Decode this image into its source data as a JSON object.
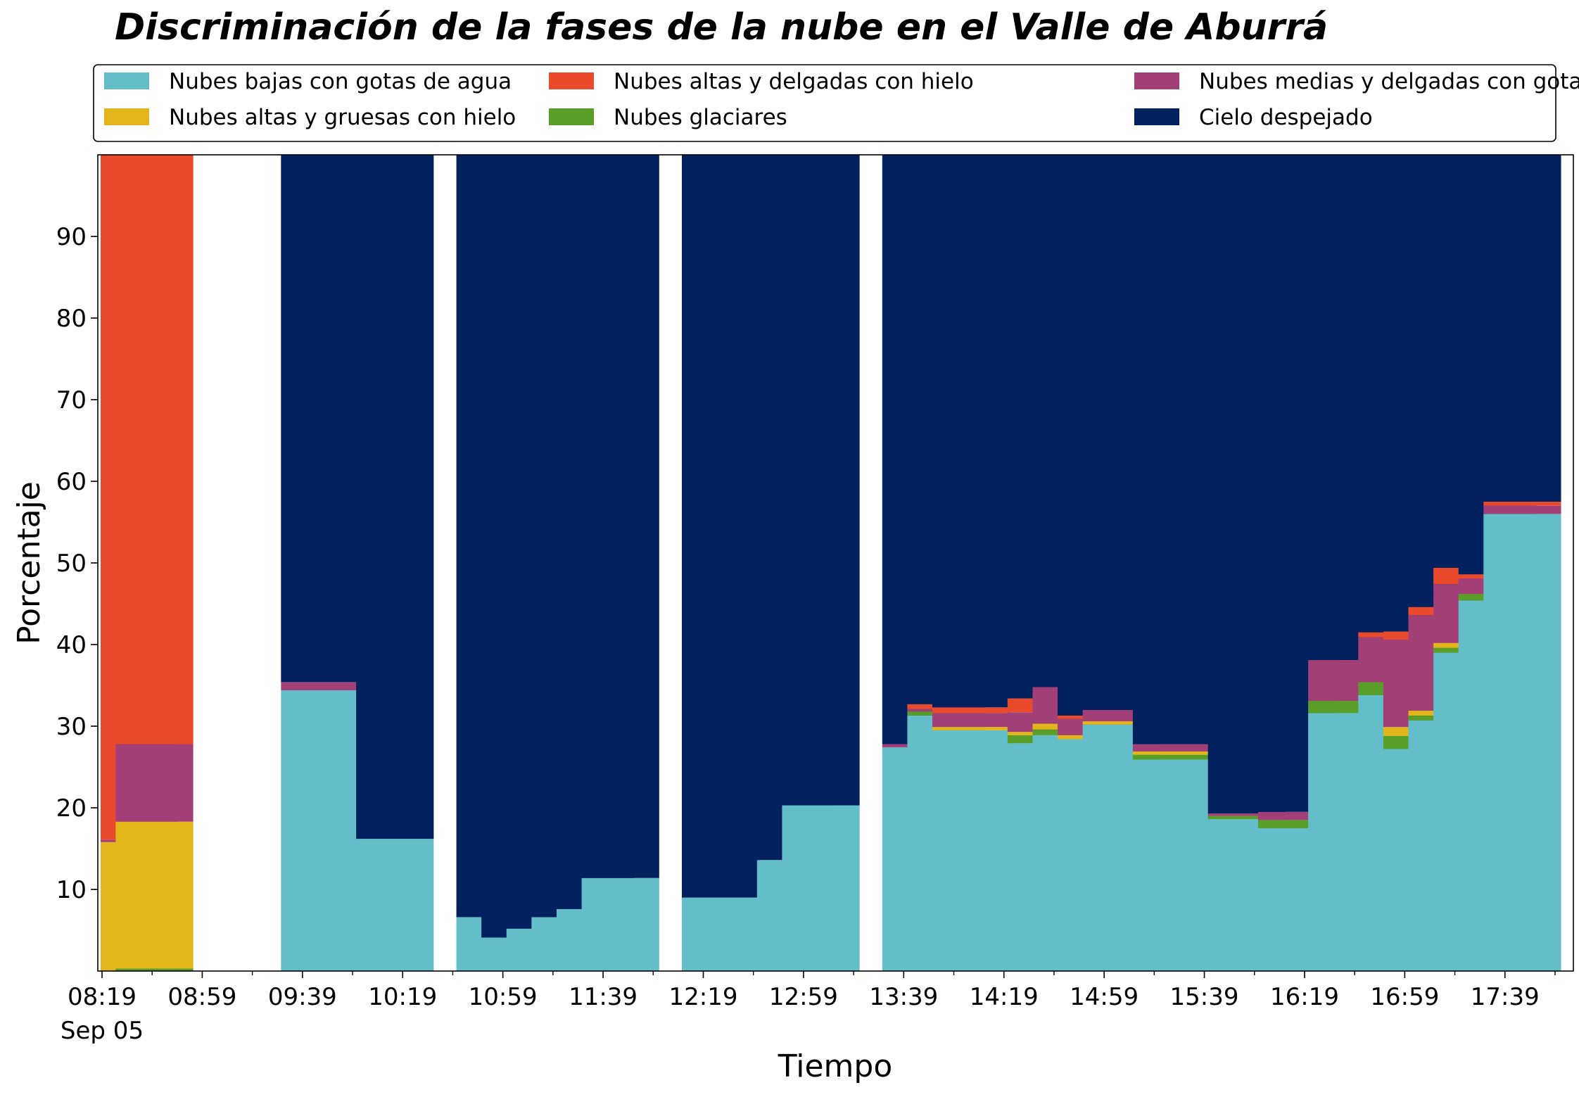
{
  "chart_data": {
    "type": "bar",
    "stacked": true,
    "title": "Discriminación de la fases de la nube en el Valle de Aburrá",
    "xlabel": "Tiempo",
    "ylabel": "Porcentaje",
    "ylim": [
      0,
      100
    ],
    "yticks": [
      10,
      20,
      30,
      40,
      50,
      60,
      70,
      80,
      90
    ],
    "x_start": "08:19",
    "x_end": "17:59",
    "bar_width_minutes": 8.6,
    "xticks": [
      {
        "time": "08:19",
        "label": "08:19",
        "sublabel": "Sep 05"
      },
      {
        "time": "08:59",
        "label": "08:59"
      },
      {
        "time": "09:39",
        "label": "09:39"
      },
      {
        "time": "10:19",
        "label": "10:19"
      },
      {
        "time": "10:59",
        "label": "10:59"
      },
      {
        "time": "11:39",
        "label": "11:39"
      },
      {
        "time": "12:19",
        "label": "12:19"
      },
      {
        "time": "12:59",
        "label": "12:59"
      },
      {
        "time": "13:39",
        "label": "13:39"
      },
      {
        "time": "14:19",
        "label": "14:19"
      },
      {
        "time": "14:59",
        "label": "14:59"
      },
      {
        "time": "15:39",
        "label": "15:39"
      },
      {
        "time": "16:19",
        "label": "16:19"
      },
      {
        "time": "16:59",
        "label": "16:59"
      },
      {
        "time": "17:39",
        "label": "17:39"
      }
    ],
    "minor_xticks": [
      "08:39",
      "09:19",
      "09:59",
      "10:39",
      "11:19",
      "11:59",
      "12:39",
      "13:19",
      "13:59",
      "14:39",
      "15:19",
      "15:59",
      "16:39",
      "17:19",
      "17:59"
    ],
    "legend_position": "top",
    "series": [
      {
        "name": "Nubes bajas con gotas de agua",
        "color": "#64bec9"
      },
      {
        "name": "Nubes glaciares",
        "color": "#5a9e2a"
      },
      {
        "name": "Nubes altas y gruesas con hielo",
        "color": "#e2b51b"
      },
      {
        "name": "Nubes medias y delgadas con gotas de agua",
        "color": "#a23f76"
      },
      {
        "name": "Nubes altas y delgadas con hielo",
        "color": "#ea4a2c"
      },
      {
        "name": "Cielo despejado",
        "color": "#00205e"
      }
    ],
    "legend_order": [
      0,
      2,
      4,
      1,
      3,
      5
    ],
    "bars": [
      {
        "time": "08:19",
        "values": [
          0,
          0,
          15.8,
          0.3,
          83.9,
          0
        ]
      },
      {
        "time": "08:25",
        "values": [
          0,
          0.3,
          18,
          9.5,
          72.2,
          0
        ]
      },
      {
        "time": "09:31",
        "values": [
          34.4,
          0,
          0,
          1,
          0,
          64.6
        ]
      },
      {
        "time": "10:01",
        "values": [
          16.2,
          0,
          0,
          0,
          0,
          83.8
        ]
      },
      {
        "time": "10:41",
        "values": [
          6.6,
          0,
          0,
          0,
          0,
          93.4
        ]
      },
      {
        "time": "10:51",
        "values": [
          4.1,
          0,
          0,
          0,
          0,
          95.9
        ]
      },
      {
        "time": "11:01",
        "values": [
          5.2,
          0,
          0,
          0,
          0,
          94.8
        ]
      },
      {
        "time": "11:11",
        "values": [
          6.6,
          0,
          0,
          0,
          0,
          93.4
        ]
      },
      {
        "time": "11:21",
        "values": [
          7.6,
          0,
          0,
          0,
          0,
          92.4
        ]
      },
      {
        "time": "11:31",
        "values": [
          11.4,
          0,
          0,
          0,
          0,
          88.6
        ]
      },
      {
        "time": "12:11",
        "values": [
          9,
          0,
          0,
          0,
          0,
          91
        ]
      },
      {
        "time": "12:41",
        "values": [
          13.6,
          0,
          0,
          0,
          0,
          86.4
        ]
      },
      {
        "time": "12:51",
        "values": [
          20.3,
          0,
          0,
          0,
          0,
          79.7
        ]
      },
      {
        "time": "13:31",
        "values": [
          27.4,
          0,
          0,
          0.4,
          0,
          72.2
        ]
      },
      {
        "time": "13:41",
        "values": [
          31.3,
          0.5,
          0,
          0.3,
          0.6,
          67.3
        ]
      },
      {
        "time": "13:51",
        "values": [
          29.5,
          0,
          0.4,
          1.7,
          0.7,
          67.7
        ]
      },
      {
        "time": "14:21",
        "values": [
          27.9,
          1,
          0.4,
          2.4,
          1.7,
          66.6
        ]
      },
      {
        "time": "14:31",
        "values": [
          28.9,
          0.7,
          0.7,
          4.5,
          0,
          65.2
        ]
      },
      {
        "time": "14:41",
        "values": [
          28.4,
          0,
          0.5,
          2,
          0.4,
          68.7
        ]
      },
      {
        "time": "14:51",
        "values": [
          30.2,
          0,
          0.4,
          1.4,
          0,
          68
        ]
      },
      {
        "time": "15:11",
        "values": [
          25.9,
          0.6,
          0.4,
          0.9,
          0,
          72.2
        ]
      },
      {
        "time": "15:41",
        "values": [
          18.6,
          0.4,
          0,
          0.3,
          0,
          80.7
        ]
      },
      {
        "time": "16:01",
        "values": [
          17.5,
          1,
          0,
          1,
          0,
          80.5
        ]
      },
      {
        "time": "16:21",
        "values": [
          31.6,
          1.5,
          0,
          5,
          0,
          61.9
        ]
      },
      {
        "time": "16:41",
        "values": [
          33.8,
          1.6,
          0,
          5.5,
          0.6,
          58.5
        ]
      },
      {
        "time": "16:51",
        "values": [
          27.2,
          1.6,
          1.1,
          10.7,
          1,
          58.4
        ]
      },
      {
        "time": "17:01",
        "values": [
          30.7,
          0.6,
          0.6,
          11.7,
          1,
          55.4
        ]
      },
      {
        "time": "17:11",
        "values": [
          39,
          0.6,
          0.6,
          7.2,
          2,
          50.6
        ]
      },
      {
        "time": "17:21",
        "values": [
          45.4,
          0.8,
          0,
          1.9,
          0.5,
          51.4
        ]
      },
      {
        "time": "17:31",
        "values": [
          56,
          0,
          0,
          1,
          0.5,
          42.5
        ]
      }
    ]
  }
}
